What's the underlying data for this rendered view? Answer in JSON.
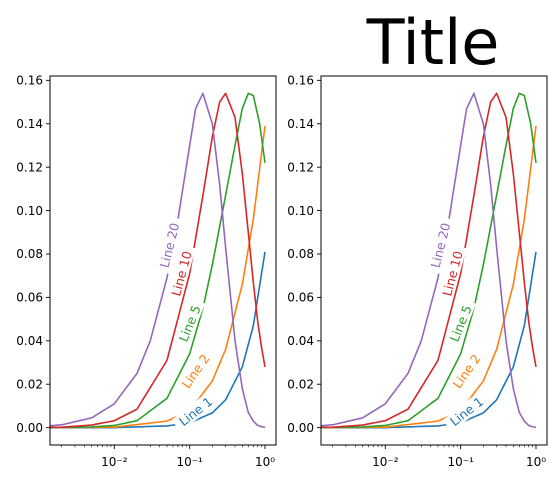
{
  "figure": {
    "title": "Title"
  },
  "chart_data": [
    {
      "type": "line",
      "xscale": "log",
      "xlim": [
        0.0014,
        1.4
      ],
      "ylim": [
        -0.008,
        0.162
      ],
      "xticks": [
        {
          "value": 0.01,
          "label": "10⁻²"
        },
        {
          "value": 0.1,
          "label": "10⁻¹"
        },
        {
          "value": 1,
          "label": "10⁰"
        }
      ],
      "yticks": [
        {
          "value": 0.0,
          "label": "0.00"
        },
        {
          "value": 0.02,
          "label": "0.02"
        },
        {
          "value": 0.04,
          "label": "0.04"
        },
        {
          "value": 0.06,
          "label": "0.06"
        },
        {
          "value": 0.08,
          "label": "0.08"
        },
        {
          "value": 0.1,
          "label": "0.10"
        },
        {
          "value": 0.12,
          "label": "0.12"
        },
        {
          "value": 0.14,
          "label": "0.14"
        },
        {
          "value": 0.16,
          "label": "0.16"
        }
      ],
      "series": [
        {
          "name": "Line 1",
          "color": "#1f77b4",
          "x": [
            0.001,
            0.01,
            0.05,
            0.1,
            0.2,
            0.3,
            0.5,
            0.7,
            1.0
          ],
          "y": [
            0.0,
            0.0,
            0.0008,
            0.0022,
            0.0068,
            0.0128,
            0.028,
            0.047,
            0.081
          ]
        },
        {
          "name": "Line 2",
          "color": "#ff7f0e",
          "x": [
            0.001,
            0.01,
            0.05,
            0.1,
            0.2,
            0.3,
            0.5,
            0.7,
            1.0
          ],
          "y": [
            0.0,
            0.0002,
            0.003,
            0.0078,
            0.0215,
            0.036,
            0.066,
            0.096,
            0.139
          ]
        },
        {
          "name": "Line 5",
          "color": "#2ca02c",
          "x": [
            0.001,
            0.005,
            0.01,
            0.02,
            0.05,
            0.1,
            0.15,
            0.2,
            0.3,
            0.4,
            0.5,
            0.6,
            0.7,
            0.85,
            1.0
          ],
          "y": [
            0.0,
            0.0003,
            0.001,
            0.0032,
            0.0135,
            0.034,
            0.055,
            0.075,
            0.107,
            0.13,
            0.147,
            0.154,
            0.153,
            0.14,
            0.122
          ]
        },
        {
          "name": "Line 10",
          "color": "#d62728",
          "x": [
            0.001,
            0.002,
            0.005,
            0.01,
            0.02,
            0.05,
            0.1,
            0.15,
            0.2,
            0.25,
            0.3,
            0.4,
            0.5,
            0.6,
            0.7,
            0.8,
            0.9,
            1.0
          ],
          "y": [
            0.0,
            0.0002,
            0.0012,
            0.0032,
            0.0085,
            0.031,
            0.071,
            0.107,
            0.134,
            0.15,
            0.154,
            0.143,
            0.117,
            0.09,
            0.067,
            0.049,
            0.037,
            0.028
          ]
        },
        {
          "name": "Line 20",
          "color": "#9467bd",
          "x": [
            0.001,
            0.002,
            0.005,
            0.01,
            0.02,
            0.03,
            0.05,
            0.07,
            0.1,
            0.12,
            0.15,
            0.2,
            0.25,
            0.3,
            0.4,
            0.5,
            0.6,
            0.7,
            0.8,
            0.9,
            1.0
          ],
          "y": [
            0.0005,
            0.0013,
            0.0045,
            0.011,
            0.025,
            0.04,
            0.069,
            0.096,
            0.13,
            0.147,
            0.154,
            0.14,
            0.112,
            0.083,
            0.04,
            0.018,
            0.007,
            0.003,
            0.001,
            0.0004,
            0.0001
          ]
        }
      ],
      "inline_labels": [
        {
          "text": "Line 1",
          "color": "#1f77b4",
          "x": 0.12,
          "y": 0.0075,
          "angle": -38
        },
        {
          "text": "Line 2",
          "color": "#ff7f0e",
          "x": 0.12,
          "y": 0.026,
          "angle": -55
        },
        {
          "text": "Line 5",
          "color": "#2ca02c",
          "x": 0.1,
          "y": 0.048,
          "angle": -68
        },
        {
          "text": "Line 10",
          "color": "#d62728",
          "x": 0.078,
          "y": 0.071,
          "angle": -75
        },
        {
          "text": "Line 20",
          "color": "#9467bd",
          "x": 0.054,
          "y": 0.084,
          "angle": -76
        }
      ]
    },
    {
      "type": "line",
      "xscale": "log",
      "xlim": [
        0.0014,
        1.4
      ],
      "ylim": [
        -0.008,
        0.162
      ],
      "xticks": [
        {
          "value": 0.01,
          "label": "10⁻²"
        },
        {
          "value": 0.1,
          "label": "10⁻¹"
        },
        {
          "value": 1,
          "label": "10⁰"
        }
      ],
      "yticks": [
        {
          "value": 0.0,
          "label": "0.00"
        },
        {
          "value": 0.02,
          "label": "0.02"
        },
        {
          "value": 0.04,
          "label": "0.04"
        },
        {
          "value": 0.06,
          "label": "0.06"
        },
        {
          "value": 0.08,
          "label": "0.08"
        },
        {
          "value": 0.1,
          "label": "0.10"
        },
        {
          "value": 0.12,
          "label": "0.12"
        },
        {
          "value": 0.14,
          "label": "0.14"
        },
        {
          "value": 0.16,
          "label": "0.16"
        }
      ],
      "series": [
        {
          "name": "Line 1",
          "color": "#1f77b4",
          "x": [
            0.001,
            0.01,
            0.05,
            0.1,
            0.2,
            0.3,
            0.5,
            0.7,
            1.0
          ],
          "y": [
            0.0,
            0.0,
            0.0008,
            0.0022,
            0.0068,
            0.0128,
            0.028,
            0.047,
            0.081
          ]
        },
        {
          "name": "Line 2",
          "color": "#ff7f0e",
          "x": [
            0.001,
            0.01,
            0.05,
            0.1,
            0.2,
            0.3,
            0.5,
            0.7,
            1.0
          ],
          "y": [
            0.0,
            0.0002,
            0.003,
            0.0078,
            0.0215,
            0.036,
            0.066,
            0.096,
            0.139
          ]
        },
        {
          "name": "Line 5",
          "color": "#2ca02c",
          "x": [
            0.001,
            0.005,
            0.01,
            0.02,
            0.05,
            0.1,
            0.15,
            0.2,
            0.3,
            0.4,
            0.5,
            0.6,
            0.7,
            0.85,
            1.0
          ],
          "y": [
            0.0,
            0.0003,
            0.001,
            0.0032,
            0.0135,
            0.034,
            0.055,
            0.075,
            0.107,
            0.13,
            0.147,
            0.154,
            0.153,
            0.14,
            0.122
          ]
        },
        {
          "name": "Line 10",
          "color": "#d62728",
          "x": [
            0.001,
            0.002,
            0.005,
            0.01,
            0.02,
            0.05,
            0.1,
            0.15,
            0.2,
            0.25,
            0.3,
            0.4,
            0.5,
            0.6,
            0.7,
            0.8,
            0.9,
            1.0
          ],
          "y": [
            0.0,
            0.0002,
            0.0012,
            0.0032,
            0.0085,
            0.031,
            0.071,
            0.107,
            0.134,
            0.15,
            0.154,
            0.143,
            0.117,
            0.09,
            0.067,
            0.049,
            0.037,
            0.028
          ]
        },
        {
          "name": "Line 20",
          "color": "#9467bd",
          "x": [
            0.001,
            0.002,
            0.005,
            0.01,
            0.02,
            0.03,
            0.05,
            0.07,
            0.1,
            0.12,
            0.15,
            0.2,
            0.25,
            0.3,
            0.4,
            0.5,
            0.6,
            0.7,
            0.8,
            0.9,
            1.0
          ],
          "y": [
            0.0005,
            0.0013,
            0.0045,
            0.011,
            0.025,
            0.04,
            0.069,
            0.096,
            0.13,
            0.147,
            0.154,
            0.14,
            0.112,
            0.083,
            0.04,
            0.018,
            0.007,
            0.003,
            0.001,
            0.0004,
            0.0001
          ]
        }
      ],
      "inline_labels": [
        {
          "text": "Line 1",
          "color": "#1f77b4",
          "x": 0.12,
          "y": 0.0075,
          "angle": -38
        },
        {
          "text": "Line 2",
          "color": "#ff7f0e",
          "x": 0.12,
          "y": 0.026,
          "angle": -55
        },
        {
          "text": "Line 5",
          "color": "#2ca02c",
          "x": 0.1,
          "y": 0.048,
          "angle": -68
        },
        {
          "text": "Line 10",
          "color": "#d62728",
          "x": 0.078,
          "y": 0.071,
          "angle": -75
        },
        {
          "text": "Line 20",
          "color": "#9467bd",
          "x": 0.054,
          "y": 0.084,
          "angle": -76
        }
      ]
    }
  ]
}
